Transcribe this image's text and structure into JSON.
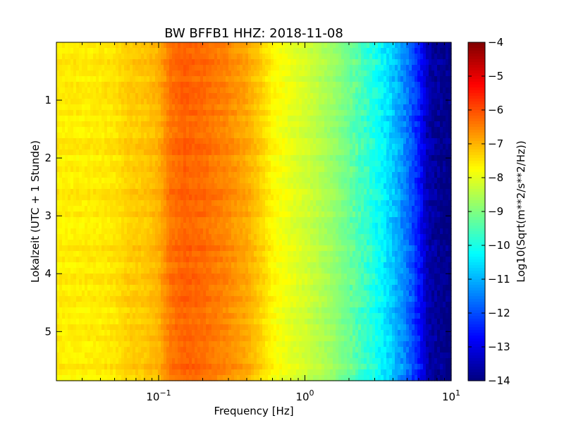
{
  "chart_data": {
    "type": "heatmap",
    "title": "BW BFFB1 HHZ: 2018-11-08",
    "xlabel": "Frequency [Hz]",
    "ylabel": "Lokalzeit (UTC + 1 Stunde)",
    "x_scale": "log",
    "xlim": [
      0.02,
      10
    ],
    "x_ticks": [
      {
        "value": 0.1,
        "base": "10",
        "exp": "−1"
      },
      {
        "value": 1,
        "base": "10",
        "exp": "0"
      },
      {
        "value": 10,
        "base": "10",
        "exp": "1"
      }
    ],
    "ylim": [
      0,
      5.85
    ],
    "y_inverted": true,
    "y_ticks": [
      {
        "value": 1,
        "label": "1"
      },
      {
        "value": 2,
        "label": "2"
      },
      {
        "value": 3,
        "label": "3"
      },
      {
        "value": 4,
        "label": "4"
      },
      {
        "value": 5,
        "label": "5"
      }
    ],
    "colormap": "jet",
    "color_range": [
      -14,
      -4
    ],
    "colorbar": {
      "label": "Log10(Sqrt(m**2/s**2/Hz))",
      "ticks": [
        {
          "value": -4,
          "label": "−4"
        },
        {
          "value": -5,
          "label": "−5"
        },
        {
          "value": -6,
          "label": "−6"
        },
        {
          "value": -7,
          "label": "−7"
        },
        {
          "value": -8,
          "label": "−8"
        },
        {
          "value": -9,
          "label": "−9"
        },
        {
          "value": -10,
          "label": "−10"
        },
        {
          "value": -11,
          "label": "−11"
        },
        {
          "value": -12,
          "label": "−12"
        },
        {
          "value": -13,
          "label": "−13"
        },
        {
          "value": -14,
          "label": "−14"
        }
      ]
    },
    "spectrum_profile": {
      "frequency": [
        0.02,
        0.03,
        0.04,
        0.05,
        0.06,
        0.08,
        0.1,
        0.12,
        0.15,
        0.2,
        0.3,
        0.4,
        0.5,
        0.6,
        0.8,
        1,
        1.5,
        2,
        3,
        4,
        5,
        6,
        7,
        10
      ],
      "value": [
        -7.6,
        -7.6,
        -7.55,
        -7.5,
        -7.3,
        -7.2,
        -7.0,
        -6.4,
        -6.2,
        -6.3,
        -6.6,
        -6.9,
        -7.3,
        -7.7,
        -8.0,
        -8.2,
        -8.7,
        -9.2,
        -10.0,
        -10.8,
        -11.6,
        -12.5,
        -13.6,
        -14.0
      ]
    }
  }
}
